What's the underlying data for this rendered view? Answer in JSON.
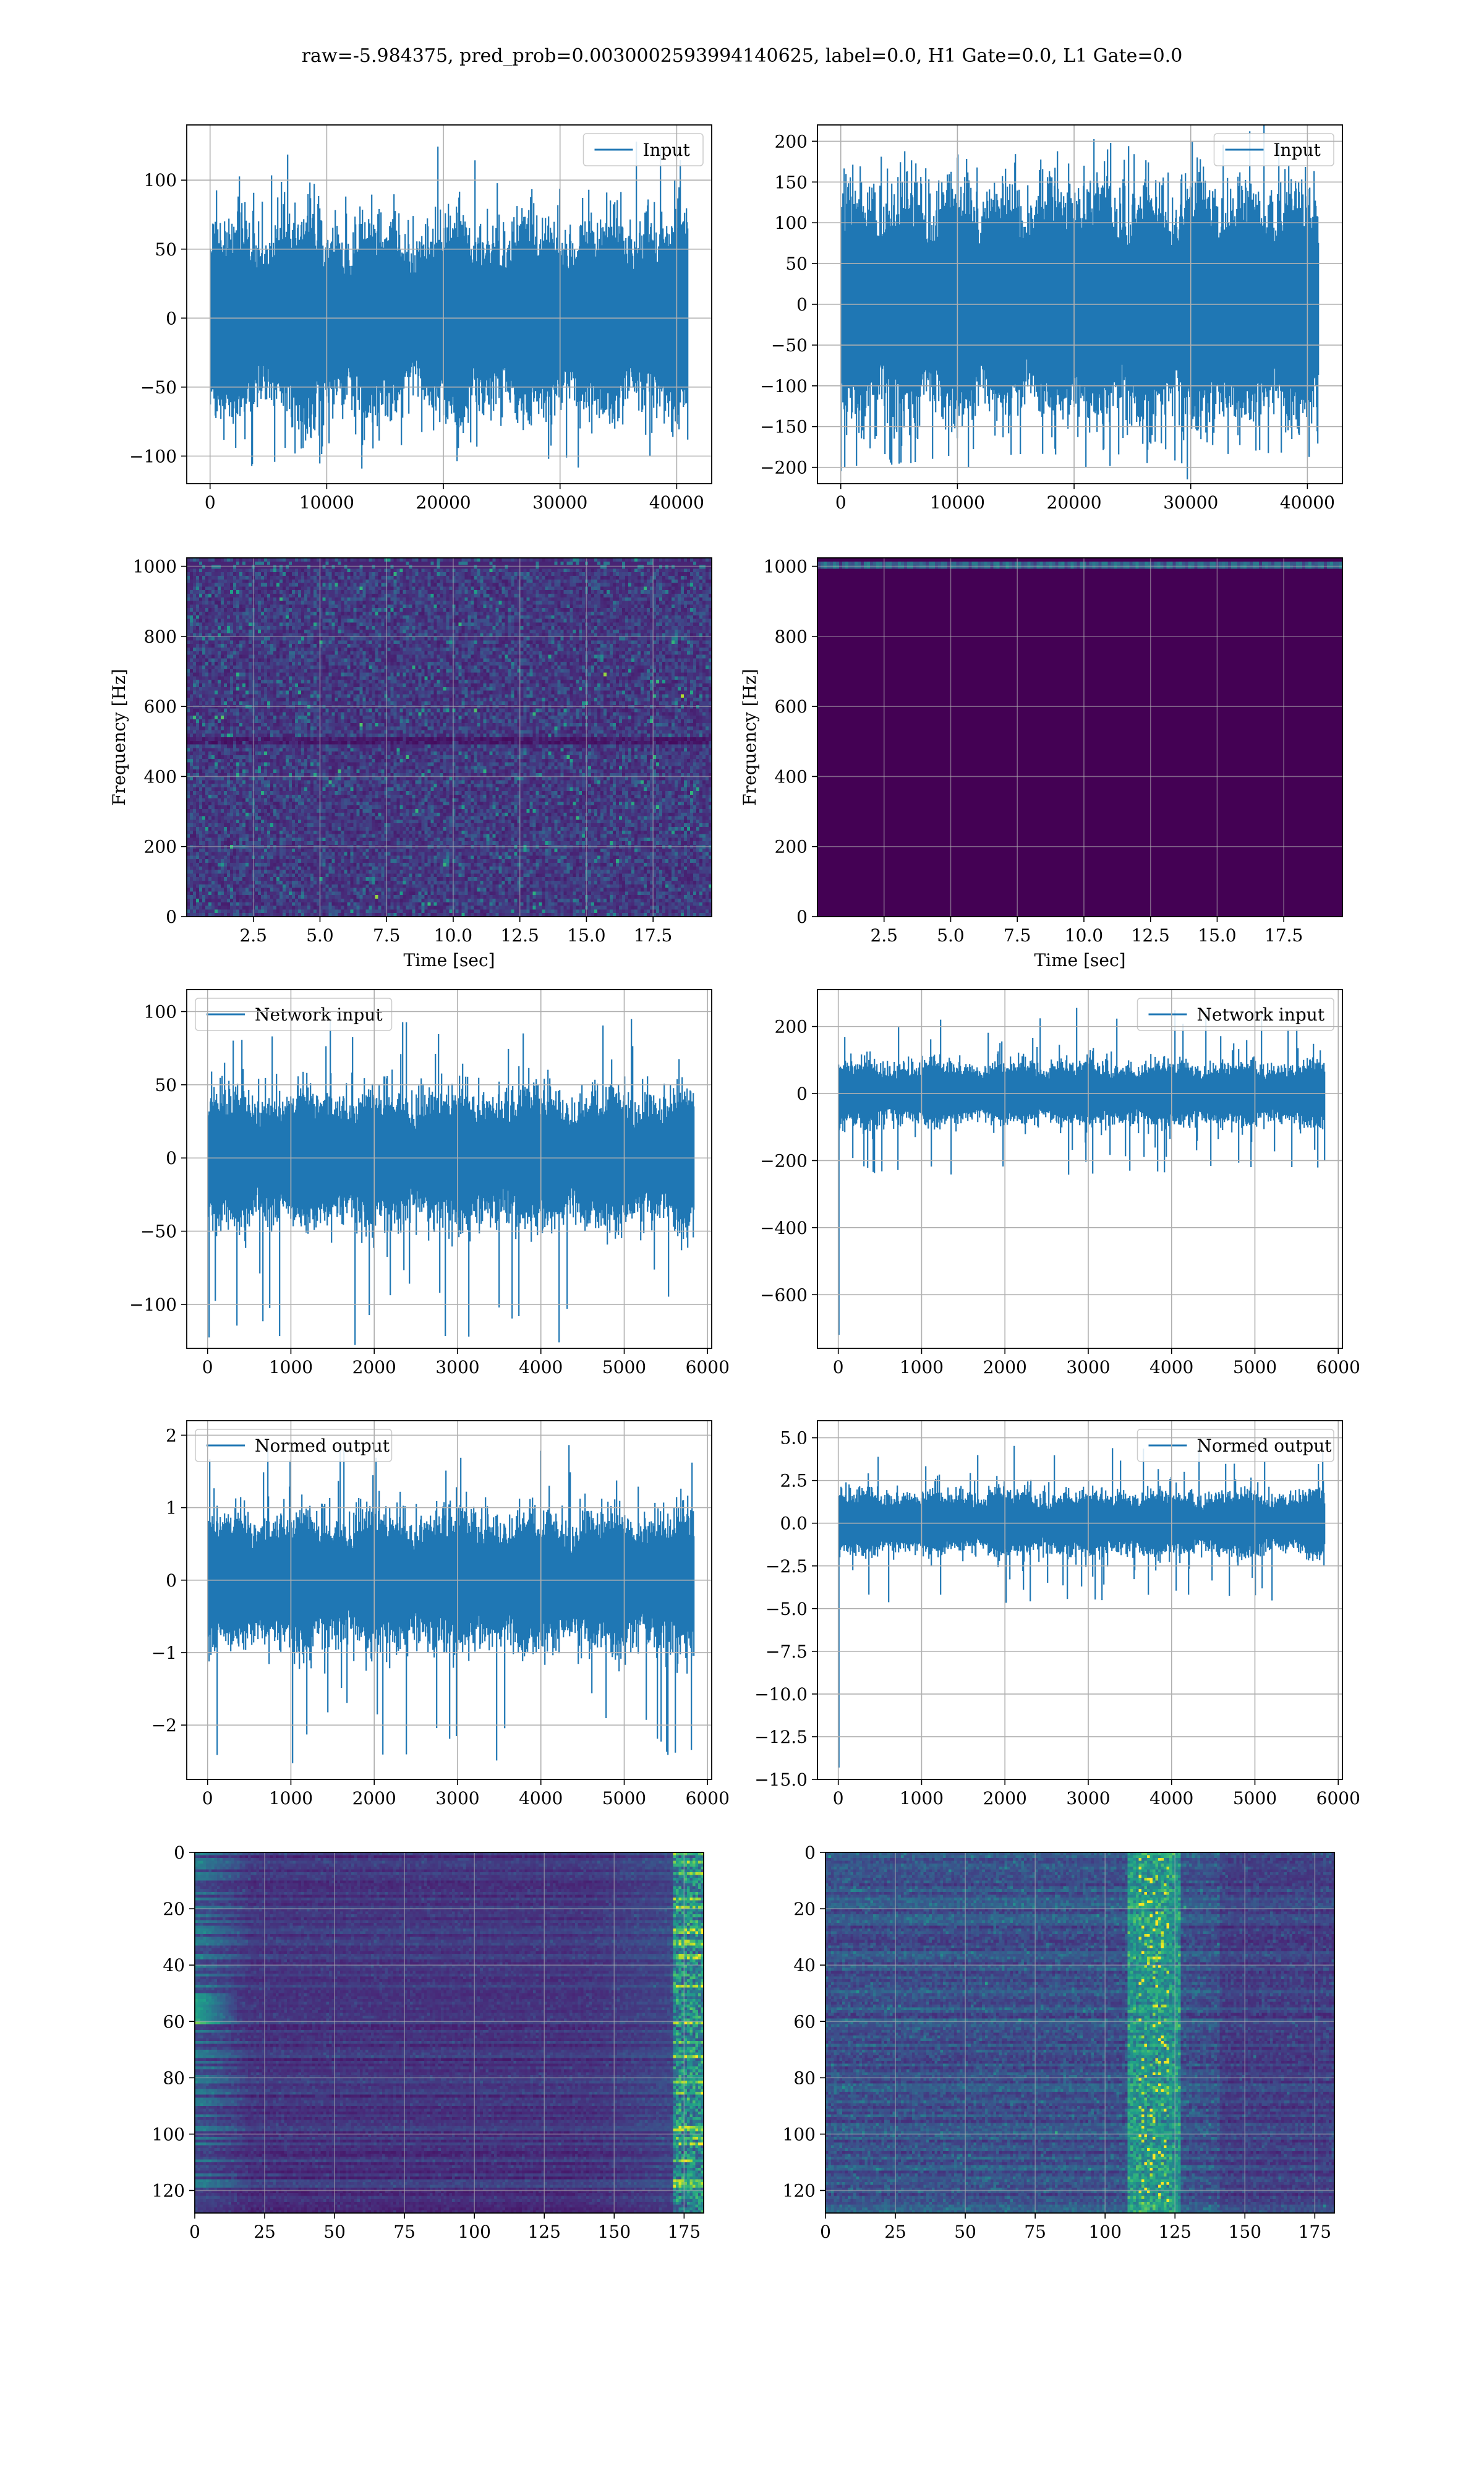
{
  "figure": {
    "suptitle": "raw=-5.984375, pred_prob=0.0030002593994140625, label=0.0, H1 Gate=0.0, L1 Gate=0.0",
    "line_color": "#1f77b4",
    "grid_color": "#b0b0b0",
    "colormap": "viridis"
  },
  "chart_data": [
    {
      "id": "input-h1",
      "type": "line",
      "series": [
        {
          "name": "Input",
          "values_summary": "noise centered at 0, envelope about +/-70, peaks to +/-130"
        }
      ],
      "legend": "upper right",
      "grid": true,
      "xlim": [
        -2000,
        43000
      ],
      "ylim": [
        -120,
        140
      ],
      "xticks": [
        0,
        10000,
        20000,
        30000,
        40000
      ],
      "xticklabels": [
        "0",
        "10000",
        "20000",
        "30000",
        "40000"
      ],
      "yticks": [
        -100,
        -50,
        0,
        50,
        100
      ],
      "yticklabels": [
        "−100",
        "−50",
        "0",
        "50",
        "100"
      ],
      "n_points": 40960,
      "noise": {
        "env": 42,
        "peak": 128,
        "min": -110
      },
      "xlabel": "",
      "ylabel": ""
    },
    {
      "id": "input-l1",
      "type": "line",
      "series": [
        {
          "name": "Input",
          "values_summary": "noise centered at 0, envelope about +/-130, peaks to +/-205"
        }
      ],
      "legend": "upper right",
      "grid": true,
      "xlim": [
        -2000,
        43000
      ],
      "ylim": [
        -220,
        220
      ],
      "xticks": [
        0,
        10000,
        20000,
        30000,
        40000
      ],
      "xticklabels": [
        "0",
        "10000",
        "20000",
        "30000",
        "40000"
      ],
      "yticks": [
        -200,
        -150,
        -100,
        -50,
        0,
        50,
        100,
        150,
        200
      ],
      "yticklabels": [
        "−200",
        "−150",
        "−100",
        "−50",
        "0",
        "50",
        "100",
        "150",
        "200"
      ],
      "n_points": 40960,
      "noise": {
        "env": 85,
        "peak": 205,
        "min": -205
      },
      "xlabel": "",
      "ylabel": ""
    },
    {
      "id": "spectrogram-h1",
      "type": "heatmap",
      "grid": true,
      "xlim": [
        0,
        19.7
      ],
      "ylim": [
        0,
        1024
      ],
      "xticks": [
        2.5,
        5.0,
        7.5,
        10.0,
        12.5,
        15.0,
        17.5
      ],
      "xticklabels": [
        "2.5",
        "5.0",
        "7.5",
        "10.0",
        "12.5",
        "15.0",
        "17.5"
      ],
      "yticks": [
        0,
        200,
        400,
        600,
        800,
        1000
      ],
      "yticklabels": [
        "0",
        "200",
        "400",
        "600",
        "800",
        "1000"
      ],
      "xlabel": "Time [sec]",
      "ylabel": "Frequency [Hz]",
      "description": "speckled low-intensity noise across all frequencies, thin dark bands near 500 Hz and 1000 Hz"
    },
    {
      "id": "spectrogram-l1",
      "type": "heatmap",
      "grid": true,
      "xlim": [
        0,
        19.7
      ],
      "ylim": [
        0,
        1024
      ],
      "xticks": [
        2.5,
        5.0,
        7.5,
        10.0,
        12.5,
        15.0,
        17.5
      ],
      "xticklabels": [
        "2.5",
        "5.0",
        "7.5",
        "10.0",
        "12.5",
        "15.0",
        "17.5"
      ],
      "yticks": [
        0,
        200,
        400,
        600,
        800,
        1000
      ],
      "yticklabels": [
        "0",
        "200",
        "400",
        "600",
        "800",
        "1000"
      ],
      "xlabel": "Time [sec]",
      "ylabel": "Frequency [Hz]",
      "description": "uniform dark background, single bright band near 1010 Hz"
    },
    {
      "id": "network-input-h1",
      "type": "line",
      "series": [
        {
          "name": "Network input",
          "values_summary": "noise centered at 0, envelope about +/-45, peaks to +/-100"
        }
      ],
      "legend": "upper left",
      "grid": true,
      "xlim": [
        -250,
        6050
      ],
      "ylim": [
        -130,
        115
      ],
      "xticks": [
        0,
        1000,
        2000,
        3000,
        4000,
        5000,
        6000
      ],
      "xticklabels": [
        "0",
        "1000",
        "2000",
        "3000",
        "4000",
        "5000",
        "6000"
      ],
      "yticks": [
        -100,
        -50,
        0,
        50,
        100
      ],
      "yticklabels": [
        "−100",
        "−50",
        "0",
        "50",
        "100"
      ],
      "n_points": 5840,
      "noise": {
        "env": 27,
        "peak": 104,
        "min": -129
      },
      "xlabel": "",
      "ylabel": ""
    },
    {
      "id": "network-input-l1",
      "type": "line",
      "series": [
        {
          "name": "Network input",
          "values_summary": "noise centered at 0, envelope about +/-100, initial spike to about -720"
        }
      ],
      "legend": "upper right",
      "grid": true,
      "xlim": [
        -250,
        6050
      ],
      "ylim": [
        -760,
        310
      ],
      "xticks": [
        0,
        1000,
        2000,
        3000,
        4000,
        5000,
        6000
      ],
      "xticklabels": [
        "0",
        "1000",
        "2000",
        "3000",
        "4000",
        "5000",
        "6000"
      ],
      "yticks": [
        -600,
        -400,
        -200,
        0,
        200
      ],
      "yticklabels": [
        "−600",
        "−400",
        "−200",
        "0",
        "200"
      ],
      "n_points": 5840,
      "noise": {
        "env": 55,
        "peak": 260,
        "min": -250,
        "spike": -720
      },
      "xlabel": "",
      "ylabel": ""
    },
    {
      "id": "normed-output-h1",
      "type": "line",
      "series": [
        {
          "name": "Normed output",
          "values_summary": "noise centered at 0, envelope about +/-1, peaks to +/-2.5"
        }
      ],
      "legend": "upper left",
      "grid": true,
      "xlim": [
        -250,
        6050
      ],
      "ylim": [
        -2.75,
        2.2
      ],
      "xticks": [
        0,
        1000,
        2000,
        3000,
        4000,
        5000,
        6000
      ],
      "xticklabels": [
        "0",
        "1000",
        "2000",
        "3000",
        "4000",
        "5000",
        "6000"
      ],
      "yticks": [
        -2,
        -1,
        0,
        1,
        2
      ],
      "yticklabels": [
        "−2",
        "−1",
        "0",
        "1",
        "2"
      ],
      "n_points": 5840,
      "noise": {
        "env": 0.55,
        "peak": 2.05,
        "min": -2.55
      },
      "xlabel": "",
      "ylabel": ""
    },
    {
      "id": "normed-output-l1",
      "type": "line",
      "series": [
        {
          "name": "Normed output",
          "values_summary": "noise centered at 0, envelope about +/-2, initial spike to about -14.3"
        }
      ],
      "legend": "upper right",
      "grid": true,
      "xlim": [
        -250,
        6050
      ],
      "ylim": [
        -15.0,
        6.0
      ],
      "xticks": [
        0,
        1000,
        2000,
        3000,
        4000,
        5000,
        6000
      ],
      "xticklabels": [
        "0",
        "1000",
        "2000",
        "3000",
        "4000",
        "5000",
        "6000"
      ],
      "yticks": [
        -15.0,
        -12.5,
        -10.0,
        -7.5,
        -5.0,
        -2.5,
        0.0,
        2.5,
        5.0
      ],
      "yticklabels": [
        "−15.0",
        "−12.5",
        "−10.0",
        "−7.5",
        "−5.0",
        "−2.5",
        "0.0",
        "2.5",
        "5.0"
      ],
      "n_points": 5840,
      "noise": {
        "env": 1.1,
        "peak": 4.6,
        "min": -4.8,
        "spike": -14.3
      },
      "xlabel": "",
      "ylabel": ""
    },
    {
      "id": "features-h1",
      "type": "heatmap",
      "grid": true,
      "xlim": [
        0,
        182
      ],
      "ylim": [
        128,
        0
      ],
      "xticks": [
        0,
        25,
        50,
        75,
        100,
        125,
        150,
        175
      ],
      "xticklabels": [
        "0",
        "25",
        "50",
        "75",
        "100",
        "125",
        "150",
        "175"
      ],
      "yticks": [
        0,
        20,
        40,
        60,
        80,
        100,
        120
      ],
      "yticklabels": [
        "0",
        "20",
        "40",
        "60",
        "80",
        "100",
        "120"
      ],
      "xlabel": "",
      "ylabel": "",
      "description": "128 feature rows by about 182 columns; mostly dark, brighter streaks at left edge and bright spots at right edge near column 175"
    },
    {
      "id": "features-l1",
      "type": "heatmap",
      "grid": true,
      "xlim": [
        0,
        182
      ],
      "ylim": [
        128,
        0
      ],
      "xticks": [
        0,
        25,
        50,
        75,
        100,
        125,
        150,
        175
      ],
      "xticklabels": [
        "0",
        "25",
        "50",
        "75",
        "100",
        "125",
        "150",
        "175"
      ],
      "yticks": [
        0,
        20,
        40,
        60,
        80,
        100,
        120
      ],
      "yticklabels": [
        "0",
        "20",
        "40",
        "60",
        "80",
        "100",
        "120"
      ],
      "xlabel": "",
      "ylabel": "",
      "description": "128 feature rows by about 182 columns; textured horizontal streaks, bright activity around columns 110 to 125"
    }
  ]
}
